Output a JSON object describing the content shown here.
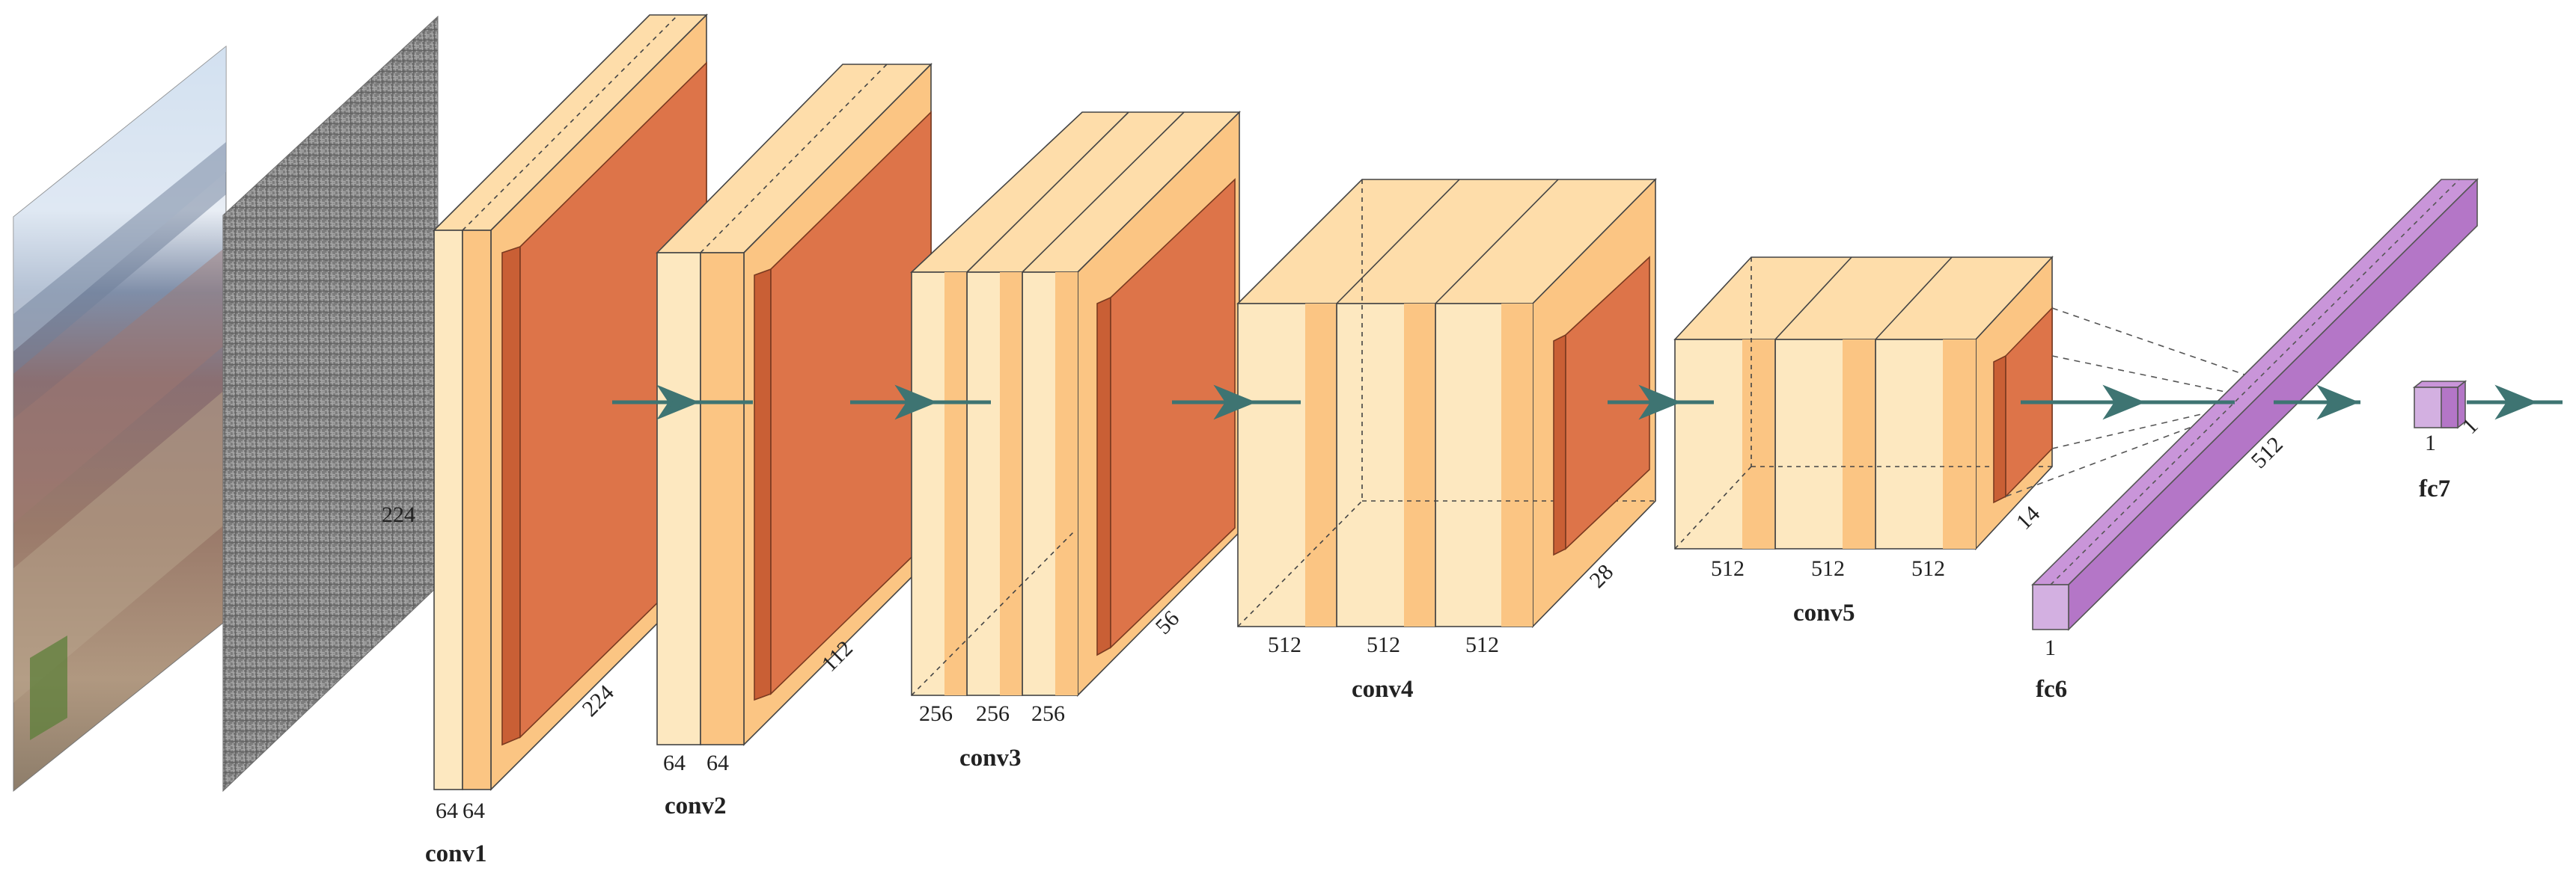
{
  "dimension_labels": {
    "input_size": "224",
    "conv1_size": "224",
    "conv1_ch1": "64",
    "conv1_ch2": "64",
    "conv2_size": "112",
    "conv2_ch1": "64",
    "conv2_ch2": "64",
    "conv3_size": "56",
    "conv3_ch1": "256",
    "conv3_ch2": "256",
    "conv3_ch3": "256",
    "conv4_size": "28",
    "conv4_ch1": "512",
    "conv4_ch2": "512",
    "conv4_ch3": "512",
    "conv5_size": "14",
    "conv5_ch1": "512",
    "conv5_ch2": "512",
    "conv5_ch3": "512",
    "fc6_depth": "512",
    "fc6_width": "1",
    "fc7_width": "1",
    "fc7_depth": "1"
  },
  "captions": {
    "conv1": "conv1",
    "conv2": "conv2",
    "conv3": "conv3",
    "conv4": "conv4",
    "conv5": "conv5",
    "fc6": "fc6",
    "fc7": "fc7"
  },
  "colors": {
    "conv_light": "#fde8c0",
    "conv_mid": "#fbc583",
    "conv_top": "#feddaa",
    "pool": "#dd7449",
    "pool_side": "#c95f35",
    "fc_front": "#d3b0e1",
    "fc_side": "#b476c7",
    "fc_top": "#c995d9",
    "arrow": "#3e7472",
    "image_feature": "#8a8a8a"
  }
}
